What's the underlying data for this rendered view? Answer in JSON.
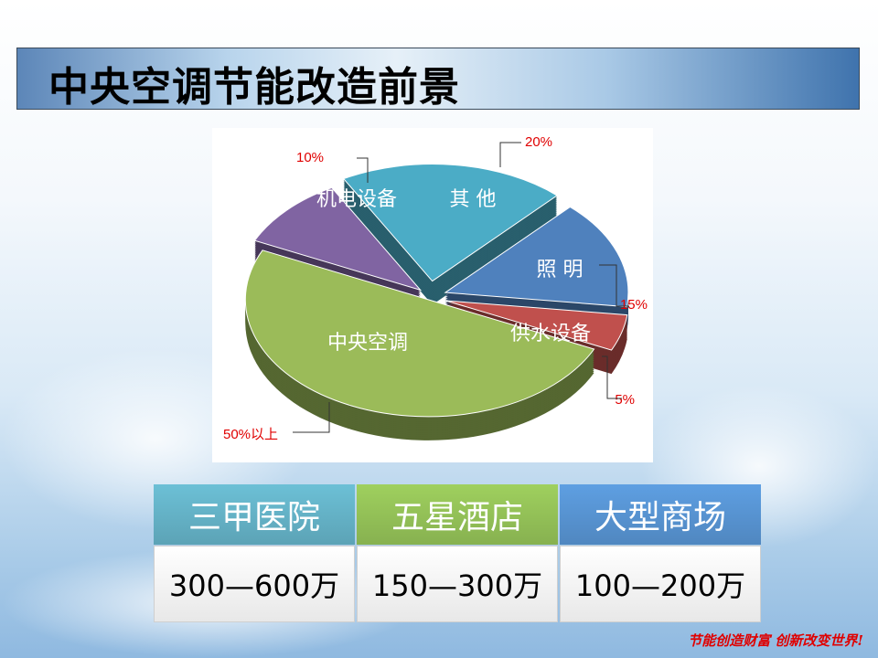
{
  "title": "中央空调节能改造前景",
  "chart_data": {
    "type": "pie",
    "style": "3d-exploded",
    "slices": [
      {
        "label": "中央空调",
        "value": 50,
        "value_label": "50%以上",
        "color": "#9bbb59"
      },
      {
        "label": "机电设备",
        "value": 10,
        "value_label": "10%",
        "color": "#8064a2"
      },
      {
        "label": "其 他",
        "value": 20,
        "value_label": "20%",
        "color": "#4bacc6"
      },
      {
        "label": "照 明",
        "value": 15,
        "value_label": "15%",
        "color": "#4f81bd"
      },
      {
        "label": "供水设备",
        "value": 5,
        "value_label": "5%",
        "color": "#c0504d"
      }
    ],
    "data_label_color": "#e00000"
  },
  "table": {
    "columns": [
      {
        "header": "三甲医院",
        "value": "300—600万",
        "color": "#6cc0d6"
      },
      {
        "header": "五星酒店",
        "value": "150—300万",
        "color": "#9fd05e"
      },
      {
        "header": "大型商场",
        "value": "100—200万",
        "color": "#5e9fe2"
      }
    ]
  },
  "footer": "节能创造财富 创新改变世界!"
}
